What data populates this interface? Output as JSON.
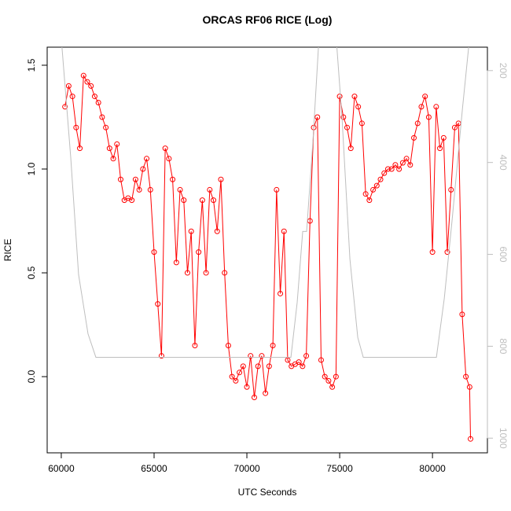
{
  "chart_data": {
    "type": "scatter-line",
    "title": "ORCAS RF06 RICE (Log)",
    "x_label": "UTC Seconds",
    "y_label": "RICE",
    "xlim": [
      59240,
      82960
    ],
    "ylim": [
      -0.367,
      1.587
    ],
    "y2lim": [
      1032,
      149
    ],
    "xticks": [
      60000,
      65000,
      70000,
      75000,
      80000
    ],
    "yticks": [
      {
        "value": 0,
        "label": "0.0"
      },
      0.5,
      {
        "value": 1,
        "label": "1.0"
      },
      1.5
    ],
    "y2ticks": [
      200,
      400,
      600,
      800,
      1000
    ],
    "series": [
      {
        "color": "#ff0000",
        "marker": "circle",
        "x": [
          60200,
          60400,
          60600,
          60800,
          61000,
          61200,
          61400,
          61600,
          61800,
          62000,
          62200,
          62400,
          62600,
          62800,
          63000,
          63200,
          63400,
          63600,
          63800,
          64000,
          64200,
          64400,
          64600,
          64800,
          65000,
          65200,
          65400,
          65600,
          65800,
          66000,
          66200,
          66400,
          66600,
          66800,
          67000,
          67200,
          67400,
          67600,
          67800,
          68000,
          68200,
          68400,
          68600,
          68800,
          69000,
          69200,
          69400,
          69600,
          69800,
          70000,
          70200,
          70400,
          70600,
          70800,
          71000,
          71200,
          71400,
          71600,
          71800,
          72000,
          72200,
          72400,
          72600,
          72800,
          73000,
          73200,
          73400,
          73600,
          73800,
          74000,
          74200,
          74400,
          74600,
          74800,
          75000,
          75200,
          75400,
          75600,
          75800,
          76000,
          76200,
          76400,
          76600,
          76800,
          77000,
          77200,
          77400,
          77600,
          77800,
          78000,
          78200,
          78400,
          78600,
          78800,
          79000,
          79200,
          79400,
          79600,
          79800,
          80000,
          80200,
          80400,
          80600,
          80800,
          81000,
          81200,
          81400,
          81600,
          81800,
          82000,
          82050
        ],
        "values": [
          1.3,
          1.4,
          1.35,
          1.2,
          1.1,
          1.45,
          1.42,
          1.4,
          1.35,
          1.32,
          1.25,
          1.2,
          1.1,
          1.05,
          1.12,
          0.95,
          0.85,
          0.86,
          0.85,
          0.95,
          0.9,
          1.0,
          1.05,
          0.9,
          0.6,
          0.35,
          0.1,
          1.1,
          1.05,
          0.95,
          0.55,
          0.9,
          0.85,
          0.5,
          0.7,
          0.15,
          0.6,
          0.85,
          0.5,
          0.9,
          0.85,
          0.7,
          0.95,
          0.5,
          0.15,
          0.0,
          -0.02,
          0.02,
          0.05,
          -0.05,
          0.1,
          -0.1,
          0.05,
          0.1,
          -0.08,
          0.05,
          0.15,
          0.9,
          0.4,
          0.7,
          0.08,
          0.05,
          0.06,
          0.07,
          0.05,
          0.1,
          0.75,
          1.2,
          1.25,
          0.08,
          0.0,
          -0.02,
          -0.05,
          0.0,
          1.35,
          1.25,
          1.2,
          1.1,
          1.35,
          1.3,
          1.22,
          0.88,
          0.85,
          0.9,
          0.92,
          0.95,
          0.98,
          1.0,
          1.0,
          1.02,
          1.0,
          1.03,
          1.05,
          1.02,
          1.15,
          1.22,
          1.3,
          1.35,
          1.25,
          0.6,
          1.3,
          1.1,
          1.15,
          0.6,
          0.9,
          1.2,
          1.22,
          0.3,
          0.0,
          -0.05,
          -0.3
        ]
      },
      {
        "color": "#bebebe",
        "axis": "y2",
        "marker": "none",
        "x": [
          60000,
          60508,
          60932,
          61441,
          61864,
          72373,
          72712,
          73008,
          73220,
          73559,
          73856,
          74068,
          74788,
          75127,
          75551,
          75975,
          76271,
          80212,
          80636,
          81059,
          81610,
          82034
        ],
        "values": [
          130,
          388,
          644,
          773,
          824,
          824,
          704,
          550,
          550,
          354,
          149,
          115,
          115,
          303,
          610,
          781,
          824,
          824,
          696,
          525,
          285,
          115
        ]
      }
    ]
  }
}
